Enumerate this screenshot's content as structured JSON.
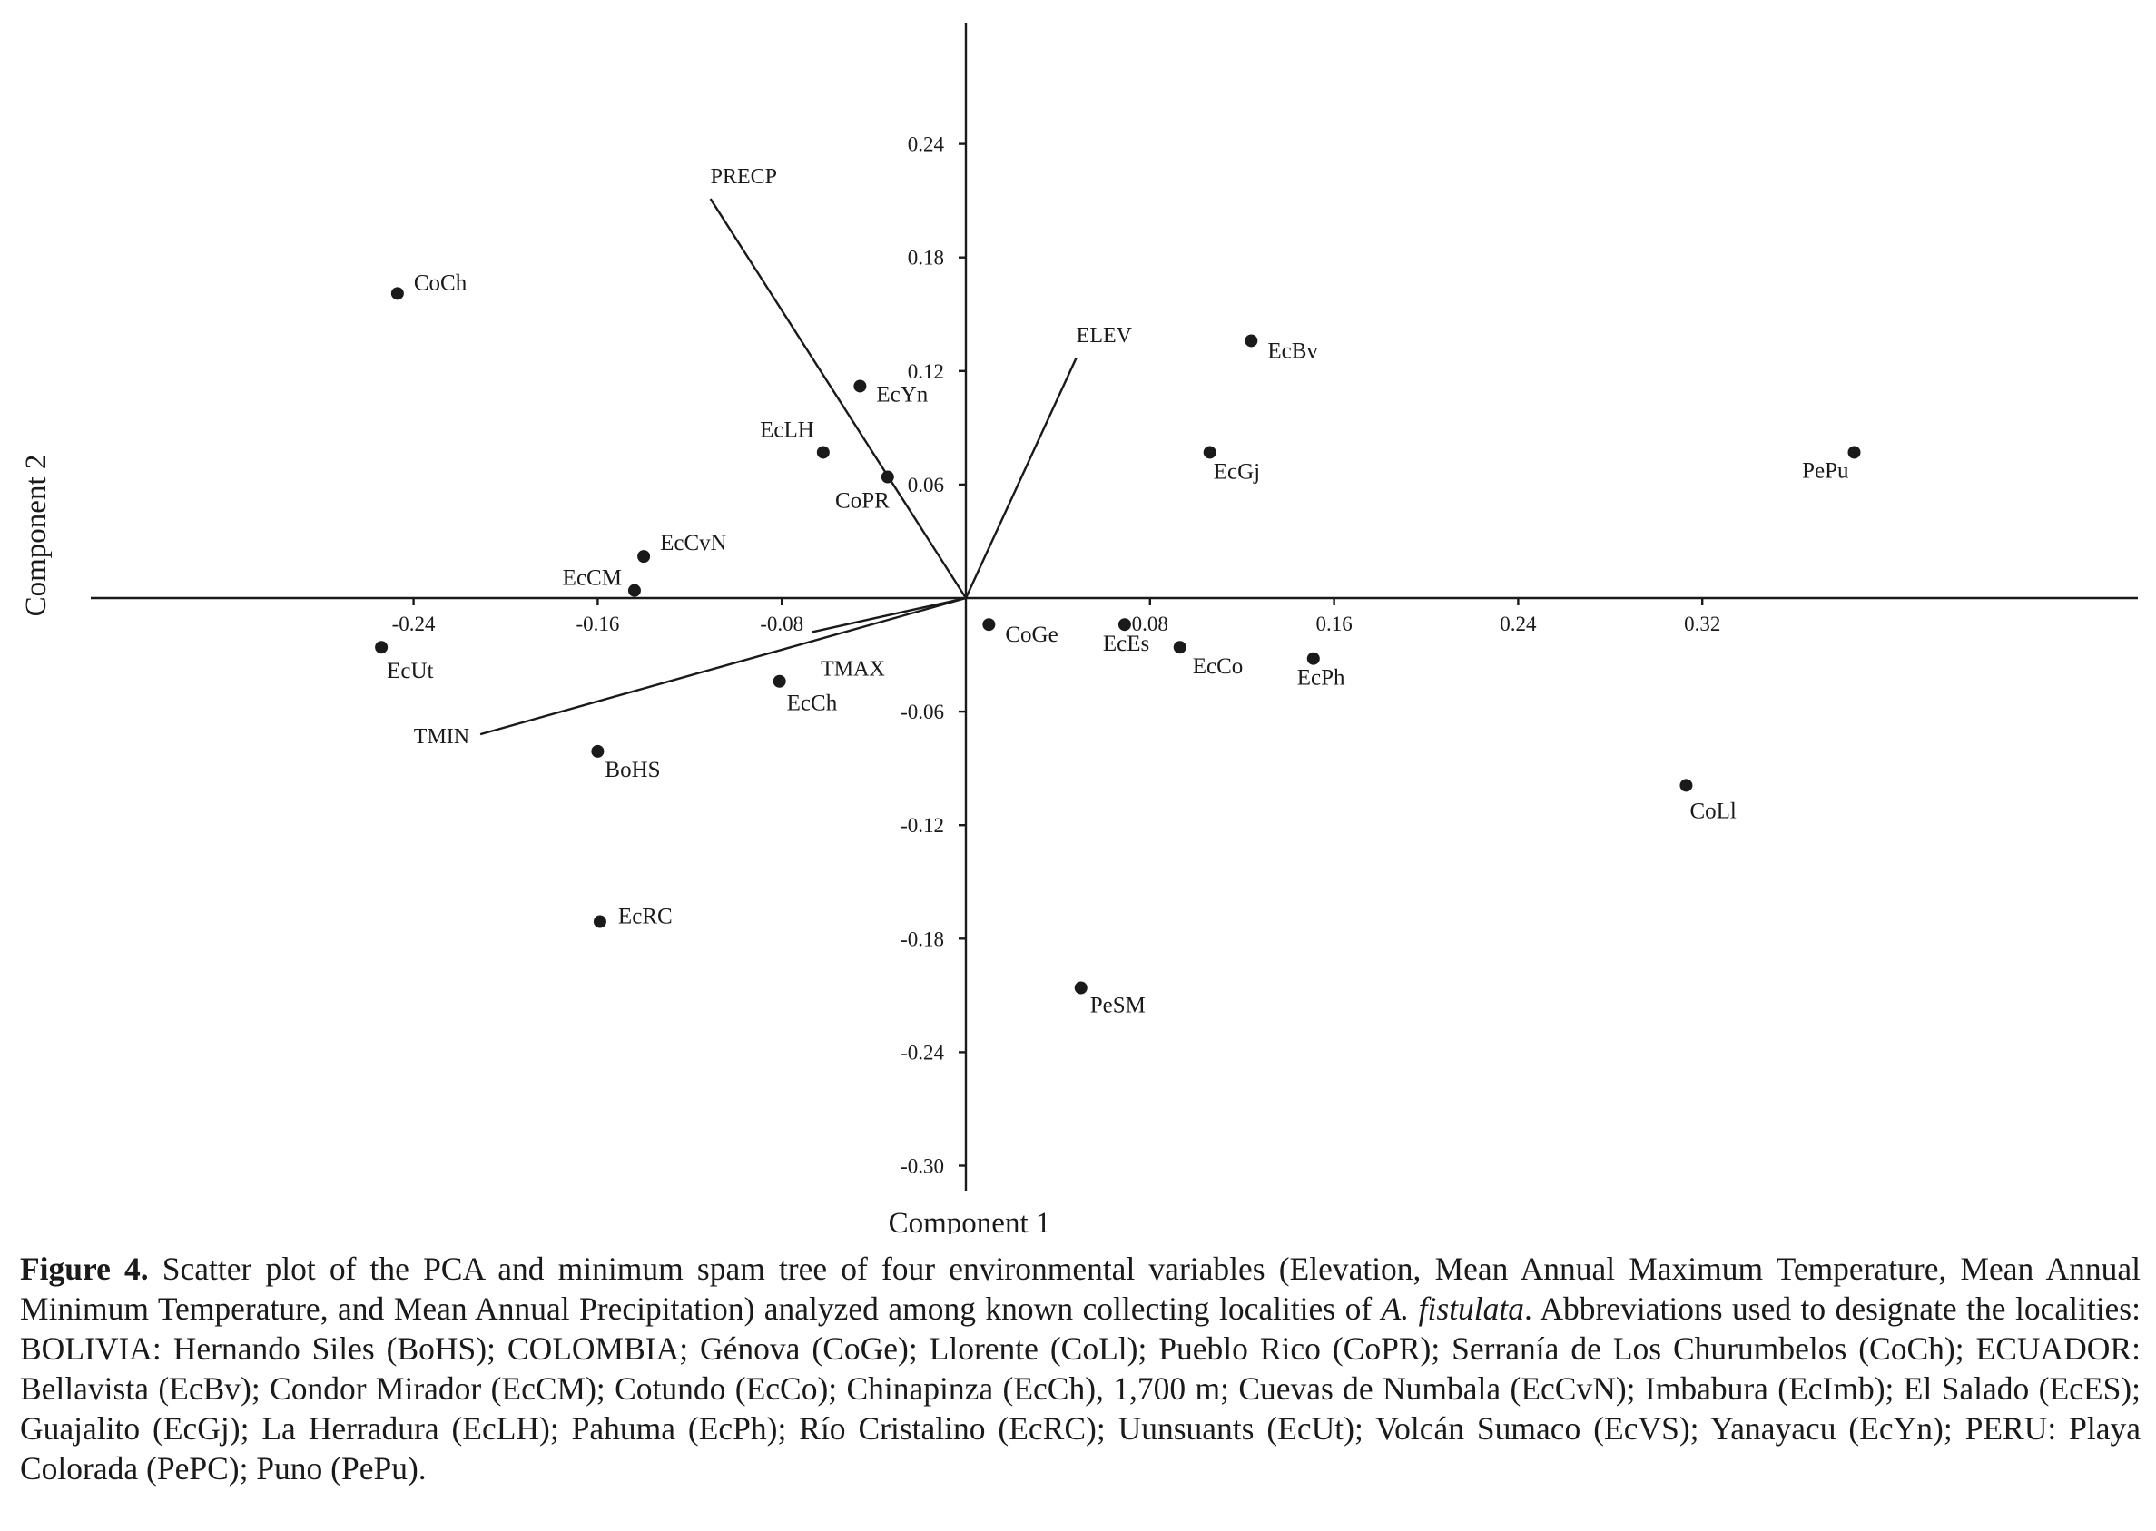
{
  "chart_data": {
    "type": "scatter",
    "title": "",
    "xlabel": "Component 1",
    "ylabel": "Component 2",
    "xlim": [
      -0.3,
      0.39
    ],
    "ylim": [
      -0.315,
      0.315
    ],
    "xticks": [
      -0.24,
      -0.16,
      -0.08,
      0.08,
      0.16,
      0.24,
      0.32
    ],
    "xtick_labels": [
      "-0.24",
      "-0.16",
      "-0.08",
      "0.08",
      "0.16",
      "0.24",
      "0.32"
    ],
    "yticks": [
      0.24,
      0.18,
      0.12,
      0.06,
      -0.06,
      -0.12,
      -0.18,
      -0.24,
      -0.3
    ],
    "ytick_labels": [
      "0.24",
      "0.18",
      "0.12",
      "0.06",
      "-0.06",
      "-0.12",
      "-0.18",
      "-0.24",
      "-0.30"
    ],
    "grid": false,
    "points": [
      {
        "label": "CoCh",
        "x": -0.247,
        "y": 0.161
      },
      {
        "label": "EcYn",
        "x": -0.046,
        "y": 0.112
      },
      {
        "label": "EcLH",
        "x": -0.062,
        "y": 0.077
      },
      {
        "label": "CoPR",
        "x": -0.034,
        "y": 0.064
      },
      {
        "label": "EcCvN",
        "x": -0.14,
        "y": 0.022
      },
      {
        "label": "EcCM",
        "x": -0.144,
        "y": 0.004
      },
      {
        "label": "EcUt",
        "x": -0.254,
        "y": -0.026
      },
      {
        "label": "EcCh",
        "x": -0.081,
        "y": -0.044
      },
      {
        "label": "BoHS",
        "x": -0.16,
        "y": -0.081
      },
      {
        "label": "EcRC",
        "x": -0.159,
        "y": -0.171
      },
      {
        "label": "CoGe",
        "x": 0.01,
        "y": -0.014
      },
      {
        "label": "EcEs",
        "x": 0.069,
        "y": -0.014
      },
      {
        "label": "EcCo",
        "x": 0.093,
        "y": -0.026
      },
      {
        "label": "EcPh",
        "x": 0.151,
        "y": -0.032
      },
      {
        "label": "EcGj",
        "x": 0.106,
        "y": 0.077
      },
      {
        "label": "EcBv",
        "x": 0.124,
        "y": 0.136
      },
      {
        "label": "PeSM",
        "x": 0.05,
        "y": -0.206
      },
      {
        "label": "CoLl",
        "x": 0.313,
        "y": -0.099
      },
      {
        "label": "PePu",
        "x": 0.386,
        "y": 0.077
      }
    ],
    "vectors": [
      {
        "label": "PRECP",
        "x": -0.111,
        "y": 0.211
      },
      {
        "label": "ELEV",
        "x": 0.048,
        "y": 0.127
      },
      {
        "label": "TMAX",
        "x": -0.067,
        "y": -0.018
      },
      {
        "label": "TMIN",
        "x": -0.211,
        "y": -0.072
      }
    ]
  },
  "caption": {
    "figure_label": "Figure 4.",
    "text_before_species": " Scatter plot of the PCA and minimum spam tree of four environmental variables (Elevation, Mean Annual Maximum Temperature, Mean Annual Minimum Temperature, and Mean Annual Precipitation) analyzed among known collecting localities of ",
    "species": "A. fistulata",
    "text_after_species": ". Abbreviations used to designate the localities: BOLIVIA: Hernando Siles (BoHS); COLOMBIA; Génova (CoGe); Llorente (CoLl); Pueblo Rico (CoPR); Serranía de Los Churumbelos (CoCh); ECUADOR: Bellavista (EcBv); Condor Mirador (EcCM); Cotundo (EcCo); Chinapinza (EcCh), 1,700 m; Cuevas de Numbala (EcCvN); Imbabura (EcImb); El Salado (EcES); Guajalito (EcGj); La Herradura (EcLH); Pahuma (EcPh); Río Cristalino (EcRC); Uunsuants (EcUt); Volcán Sumaco (EcVS); Yanayacu (EcYn); PERU: Playa Colorada (PePC); Puno (PePu)."
  }
}
